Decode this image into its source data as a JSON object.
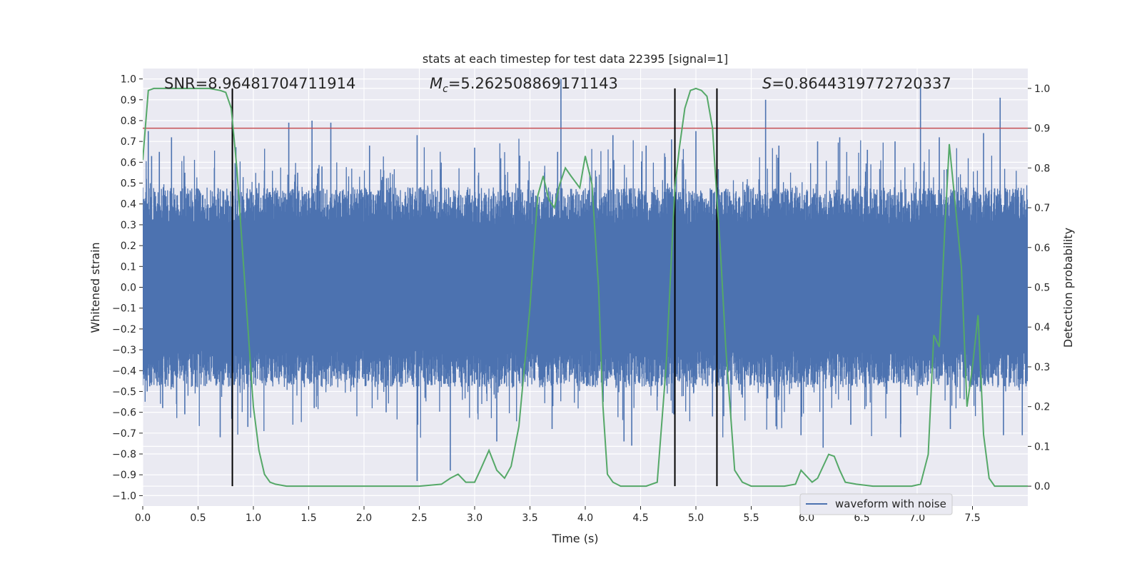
{
  "chart_data": {
    "type": "line",
    "title": "stats at each timestep for test data 22395 [signal=1]",
    "xlabel": "Time (s)",
    "ylabel_left": "Whitened strain",
    "ylabel_right": "Detection probability",
    "xlim": [
      0,
      8.0
    ],
    "ylim_left": [
      -1.05,
      1.05
    ],
    "ylim_right": [
      -0.05,
      1.05
    ],
    "x_ticks": [
      "0.0",
      "0.5",
      "1.0",
      "1.5",
      "2.0",
      "2.5",
      "3.0",
      "3.5",
      "4.0",
      "4.5",
      "5.0",
      "5.5",
      "6.0",
      "6.5",
      "7.0",
      "7.5"
    ],
    "y_ticks_left": [
      "1.0",
      "0.9",
      "0.8",
      "0.7",
      "0.6",
      "0.5",
      "0.4",
      "0.3",
      "0.2",
      "0.1",
      "0.0",
      "−0.1",
      "−0.2",
      "−0.3",
      "−0.4",
      "−0.5",
      "−0.6",
      "−0.7",
      "−0.8",
      "−0.9",
      "−1.0"
    ],
    "y_ticks_right": [
      "1.0",
      "0.9",
      "0.8",
      "0.7",
      "0.6",
      "0.5",
      "0.4",
      "0.3",
      "0.2",
      "0.1",
      "0.0"
    ],
    "grid": true,
    "legend_position": "lower-right",
    "annotations": {
      "snr": "SNR=8.96481704711914",
      "mc": "=5.262508869171143",
      "mc_symbol": "M",
      "mc_sub": "c",
      "s": "=0.8644319772720337",
      "s_symbol": "S"
    },
    "threshold_right": 0.9,
    "vertical_lines_x": [
      0.81,
      4.81,
      5.19
    ],
    "colors": {
      "waveform": "#4c72b0",
      "probability": "#55a868",
      "threshold": "#c44e52",
      "vlines": "#000000",
      "plot_bg": "#eaeaf2",
      "grid": "#ffffff"
    },
    "series": [
      {
        "name": "waveform with noise",
        "kind": "noise-fill",
        "envelope_typical": 0.3,
        "spikes": [
          {
            "x": 0.05,
            "y": 0.75
          },
          {
            "x": 0.08,
            "y": 0.63
          },
          {
            "x": 0.15,
            "y": 0.65
          },
          {
            "x": 0.26,
            "y": 0.72
          },
          {
            "x": 0.38,
            "y": 0.55
          },
          {
            "x": 1.05,
            "y": 0.5
          },
          {
            "x": 1.32,
            "y": 0.79
          },
          {
            "x": 1.4,
            "y": 0.55
          },
          {
            "x": 1.53,
            "y": 0.8
          },
          {
            "x": 1.62,
            "y": 0.58
          },
          {
            "x": 1.7,
            "y": 0.79
          },
          {
            "x": 2.05,
            "y": 0.68
          },
          {
            "x": 2.48,
            "y": 0.73
          },
          {
            "x": 3.0,
            "y": 0.67
          },
          {
            "x": 3.75,
            "y": 0.65
          },
          {
            "x": 3.78,
            "y": 1.0
          },
          {
            "x": 4.25,
            "y": 0.73
          },
          {
            "x": 4.55,
            "y": 0.68
          },
          {
            "x": 4.78,
            "y": 0.71
          },
          {
            "x": 5.0,
            "y": 0.75
          },
          {
            "x": 5.63,
            "y": 0.9
          },
          {
            "x": 5.75,
            "y": 0.68
          },
          {
            "x": 6.1,
            "y": 0.7
          },
          {
            "x": 6.3,
            "y": 0.72
          },
          {
            "x": 6.55,
            "y": 0.66
          },
          {
            "x": 6.8,
            "y": 0.7
          },
          {
            "x": 7.03,
            "y": 0.96
          },
          {
            "x": 7.2,
            "y": 0.72
          },
          {
            "x": 7.6,
            "y": 0.74
          },
          {
            "x": 7.75,
            "y": 0.91
          },
          {
            "x": 0.04,
            "y": -0.5
          },
          {
            "x": 0.18,
            "y": -0.58
          },
          {
            "x": 0.38,
            "y": -0.61
          },
          {
            "x": 0.7,
            "y": -0.72
          },
          {
            "x": 0.95,
            "y": -0.67
          },
          {
            "x": 1.55,
            "y": -0.58
          },
          {
            "x": 2.2,
            "y": -0.6
          },
          {
            "x": 2.48,
            "y": -0.93
          },
          {
            "x": 2.78,
            "y": -0.88
          },
          {
            "x": 3.2,
            "y": -0.74
          },
          {
            "x": 3.7,
            "y": -0.68
          },
          {
            "x": 4.35,
            "y": -0.74
          },
          {
            "x": 4.42,
            "y": -0.76
          },
          {
            "x": 4.8,
            "y": -0.61
          },
          {
            "x": 5.15,
            "y": -0.62
          },
          {
            "x": 5.95,
            "y": -0.71
          },
          {
            "x": 6.15,
            "y": -0.77
          },
          {
            "x": 6.4,
            "y": -0.66
          },
          {
            "x": 6.85,
            "y": -0.72
          },
          {
            "x": 7.3,
            "y": -0.68
          },
          {
            "x": 7.78,
            "y": -0.71
          },
          {
            "x": 7.95,
            "y": -0.71
          }
        ]
      },
      {
        "name": "",
        "kind": "probability",
        "x": [
          0,
          0.05,
          0.1,
          0.2,
          0.4,
          0.6,
          0.7,
          0.75,
          0.8,
          0.85,
          0.9,
          0.95,
          1.0,
          1.05,
          1.1,
          1.15,
          1.2,
          1.3,
          1.5,
          2.0,
          2.5,
          2.7,
          2.78,
          2.85,
          2.92,
          3.0,
          3.05,
          3.13,
          3.2,
          3.27,
          3.33,
          3.4,
          3.5,
          3.57,
          3.62,
          3.67,
          3.72,
          3.77,
          3.82,
          3.87,
          3.95,
          4.0,
          4.06,
          4.12,
          4.16,
          4.2,
          4.25,
          4.32,
          4.4,
          4.55,
          4.65,
          4.73,
          4.81,
          4.85,
          4.9,
          4.95,
          5.0,
          5.05,
          5.1,
          5.15,
          5.19,
          5.22,
          5.27,
          5.35,
          5.42,
          5.5,
          5.6,
          5.8,
          5.9,
          5.95,
          6.05,
          6.1,
          6.2,
          6.25,
          6.3,
          6.35,
          6.45,
          6.6,
          6.8,
          6.95,
          7.03,
          7.1,
          7.15,
          7.2,
          7.25,
          7.29,
          7.34,
          7.4,
          7.45,
          7.5,
          7.55,
          7.6,
          7.65,
          7.7,
          7.75,
          8.0
        ],
        "y": [
          0.82,
          0.995,
          1.0,
          1.0,
          1.0,
          1.0,
          0.995,
          0.99,
          0.95,
          0.8,
          0.6,
          0.4,
          0.2,
          0.09,
          0.03,
          0.01,
          0.005,
          0.0,
          0.0,
          0.0,
          0.0,
          0.005,
          0.02,
          0.03,
          0.01,
          0.01,
          0.04,
          0.09,
          0.04,
          0.02,
          0.05,
          0.15,
          0.45,
          0.73,
          0.78,
          0.72,
          0.7,
          0.76,
          0.8,
          0.78,
          0.75,
          0.83,
          0.76,
          0.5,
          0.2,
          0.03,
          0.01,
          0.0,
          0.0,
          0.0,
          0.01,
          0.3,
          0.75,
          0.85,
          0.95,
          0.995,
          1.0,
          0.995,
          0.98,
          0.9,
          0.72,
          0.6,
          0.35,
          0.04,
          0.01,
          0.0,
          0.0,
          0.0,
          0.005,
          0.04,
          0.01,
          0.02,
          0.08,
          0.075,
          0.04,
          0.01,
          0.005,
          0.0,
          0.0,
          0.0,
          0.005,
          0.08,
          0.38,
          0.35,
          0.65,
          0.86,
          0.72,
          0.55,
          0.2,
          0.3,
          0.43,
          0.13,
          0.02,
          0.0,
          0.0,
          0.0
        ]
      }
    ]
  }
}
